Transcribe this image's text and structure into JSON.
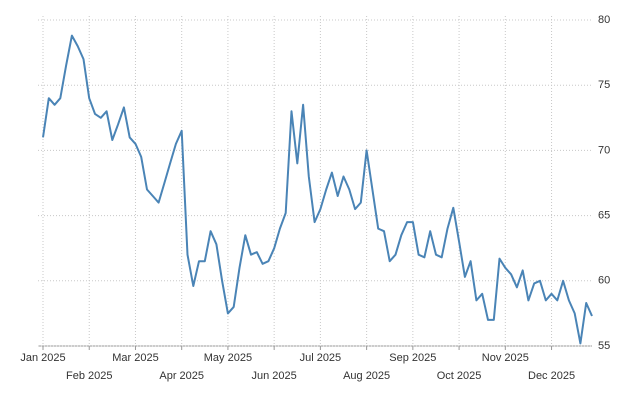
{
  "chart_data": {
    "type": "line",
    "categories": [
      "Jan 2025",
      null,
      null,
      null,
      null,
      null,
      null,
      null,
      "Feb 2025",
      null,
      null,
      null,
      null,
      null,
      null,
      null,
      "Mar 2025",
      null,
      null,
      null,
      null,
      null,
      null,
      null,
      "Apr 2025",
      null,
      null,
      null,
      null,
      null,
      null,
      null,
      "May 2025",
      null,
      null,
      null,
      null,
      null,
      null,
      null,
      "Jun 2025",
      null,
      null,
      null,
      null,
      null,
      null,
      null,
      "Jul 2025",
      null,
      null,
      null,
      null,
      null,
      null,
      null,
      "Aug 2025",
      null,
      null,
      null,
      null,
      null,
      null,
      null,
      "Sep 2025",
      null,
      null,
      null,
      null,
      null,
      null,
      null,
      "Oct 2025",
      null,
      null,
      null,
      null,
      null,
      null,
      null,
      "Nov 2025",
      null,
      null,
      null,
      null,
      null,
      null,
      null,
      "Dec 2025",
      null,
      null,
      null,
      null,
      null,
      null,
      null
    ],
    "values": [
      71,
      74,
      73.5,
      74,
      76.5,
      78.8,
      78,
      77,
      74,
      72.8,
      72.5,
      73,
      70.8,
      72,
      73.3,
      71,
      70.5,
      69.5,
      67,
      66.5,
      66,
      67.5,
      69,
      70.5,
      71.5,
      62,
      59.6,
      61.5,
      61.5,
      63.8,
      62.8,
      60,
      57.5,
      58,
      61,
      63.5,
      62,
      62.2,
      61.3,
      61.5,
      62.5,
      64,
      65.2,
      73,
      69,
      73.5,
      68,
      64.5,
      65.5,
      67,
      68.3,
      66.5,
      68,
      67,
      65.5,
      66,
      70,
      67,
      64,
      63.8,
      61.5,
      62,
      63.5,
      64.5,
      64.5,
      62,
      61.8,
      63.8,
      62,
      61.8,
      64,
      65.6,
      63,
      60.3,
      61.5,
      58.5,
      59,
      57,
      57,
      61.7,
      61,
      60.5,
      59.5,
      60.8,
      58.5,
      59.8,
      60,
      58.5,
      59,
      58.5,
      60,
      58.5,
      57.5,
      55.2,
      58.3,
      57.3
    ],
    "color": "#4a84b6",
    "ylim": [
      55,
      80
    ],
    "yticks": [
      55,
      60,
      65,
      70,
      75,
      80
    ],
    "grid": true
  }
}
